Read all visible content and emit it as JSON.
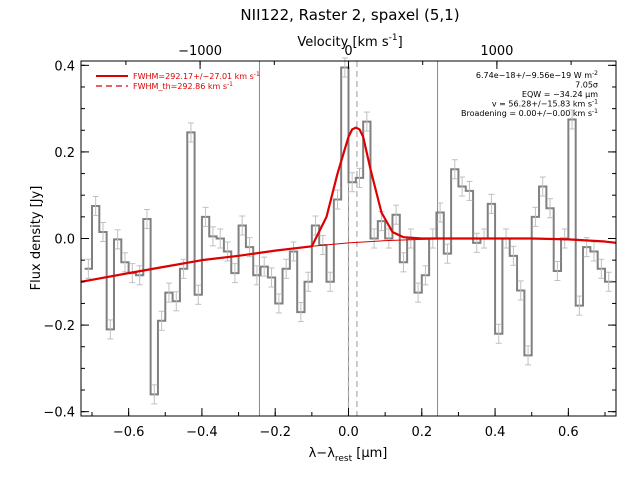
{
  "chart_data": {
    "type": "line",
    "title": "NII122, Raster 2, spaxel (5,1)",
    "xlabel": "λ−λ",
    "xlabel_sub": "rest",
    "xlabel_unit": " [μm]",
    "ylabel": "Flux density [Jy]",
    "top_xlabel": "Velocity [km s",
    "top_xlabel_sup": "-1",
    "top_xlabel_end": "]",
    "xlim": [
      -0.73,
      0.73
    ],
    "ylim": [
      -0.41,
      0.41
    ],
    "x_ticks": [
      -0.6,
      -0.4,
      -0.2,
      0.0,
      0.2,
      0.4,
      0.6
    ],
    "x_tick_labels": [
      "−0.6",
      "−0.4",
      "−0.2",
      "0.0",
      "0.2",
      "0.4",
      "0.6"
    ],
    "y_ticks": [
      -0.4,
      -0.2,
      0.0,
      0.2,
      0.4
    ],
    "y_tick_labels": [
      "−0.4",
      "−0.2",
      "0.0",
      "0.2",
      "0.4"
    ],
    "top_ticks": [
      -1000,
      0,
      1000
    ],
    "top_tick_labels": [
      "−1000",
      "0",
      "1000"
    ],
    "top_axis_um_per_kms": 0.000405,
    "vertical_lines": [
      -0.243,
      0.0,
      0.243
    ],
    "dashed_lines": [
      0.0,
      0.023
    ],
    "legend": [
      {
        "label": "FWHM=292.17+/−27.01 km s",
        "sup": "-1",
        "style": "solid",
        "color": "#dd0000"
      },
      {
        "label": "FWHM_th=292.86 km s",
        "sup": "-1",
        "style": "dashed",
        "color": "#dd0000"
      }
    ],
    "annotations": [
      {
        "text": "6.74e−18+/−9.56e−19 W m",
        "sup": "-2"
      },
      {
        "text": "7.05σ",
        "sup": ""
      },
      {
        "text": "EQW = −34.24 μm",
        "sup": ""
      },
      {
        "text": "v = 56.28+/−15.83 km s",
        "sup": "-1"
      },
      {
        "text": "Broadening = 0.00+/−0.00 km s",
        "sup": "-1"
      }
    ],
    "series": [
      {
        "style": "step",
        "color": "#808080",
        "error": 0.022,
        "x": [
          -0.71,
          -0.69,
          -0.67,
          -0.65,
          -0.63,
          -0.61,
          -0.59,
          -0.57,
          -0.55,
          -0.53,
          -0.51,
          -0.49,
          -0.47,
          -0.45,
          -0.43,
          -0.41,
          -0.39,
          -0.37,
          -0.35,
          -0.33,
          -0.31,
          -0.29,
          -0.27,
          -0.25,
          -0.23,
          -0.21,
          -0.19,
          -0.17,
          -0.15,
          -0.13,
          -0.11,
          -0.09,
          -0.07,
          -0.05,
          -0.03,
          -0.01,
          0.01,
          0.03,
          0.05,
          0.07,
          0.09,
          0.11,
          0.13,
          0.15,
          0.17,
          0.19,
          0.21,
          0.23,
          0.25,
          0.27,
          0.29,
          0.31,
          0.33,
          0.35,
          0.37,
          0.39,
          0.41,
          0.43,
          0.45,
          0.47,
          0.49,
          0.51,
          0.53,
          0.55,
          0.57,
          0.59,
          0.61,
          0.63,
          0.65,
          0.67,
          0.69,
          0.71
        ],
        "y": [
          -0.07,
          0.075,
          0.015,
          -0.21,
          -0.002,
          -0.055,
          -0.08,
          -0.085,
          0.045,
          -0.36,
          -0.19,
          -0.125,
          -0.145,
          -0.07,
          0.245,
          -0.13,
          0.05,
          0.005,
          0.0,
          -0.03,
          -0.08,
          0.03,
          -0.02,
          -0.085,
          -0.065,
          -0.09,
          -0.15,
          -0.07,
          -0.03,
          -0.17,
          -0.1,
          0.03,
          -0.015,
          -0.1,
          0.09,
          0.395,
          0.13,
          0.14,
          0.27,
          0.0,
          0.04,
          0.0,
          0.055,
          -0.055,
          0.0,
          -0.125,
          -0.085,
          0.0,
          0.06,
          -0.035,
          0.16,
          0.12,
          0.11,
          -0.01,
          0.0,
          0.08,
          -0.22,
          0.0,
          -0.04,
          -0.12,
          -0.27,
          0.05,
          0.12,
          0.07,
          -0.075,
          0.0,
          0.275,
          -0.155,
          -0.02,
          -0.03,
          -0.07,
          -0.1
        ]
      },
      {
        "style": "smooth",
        "color": "#dd0000",
        "x": [
          -0.73,
          -0.6,
          -0.5,
          -0.4,
          -0.3,
          -0.2,
          -0.1,
          -0.06,
          -0.03,
          0.0,
          0.01,
          0.02,
          0.03,
          0.04,
          0.06,
          0.09,
          0.12,
          0.15,
          0.2,
          0.3,
          0.4,
          0.5,
          0.6,
          0.7,
          0.73
        ],
        "y": [
          -0.1,
          -0.08,
          -0.065,
          -0.05,
          -0.04,
          -0.028,
          -0.018,
          0.05,
          0.15,
          0.235,
          0.252,
          0.256,
          0.252,
          0.235,
          0.16,
          0.06,
          0.015,
          0.003,
          0.0,
          0.0,
          0.0,
          0.0,
          -0.002,
          -0.007,
          -0.01
        ]
      },
      {
        "style": "smooth",
        "color": "#dd0000",
        "width_class": "thin",
        "x": [
          -0.1,
          0.0,
          0.1,
          0.2,
          0.3
        ],
        "y": [
          -0.018,
          -0.01,
          -0.005,
          -0.002,
          0.0
        ]
      }
    ]
  }
}
